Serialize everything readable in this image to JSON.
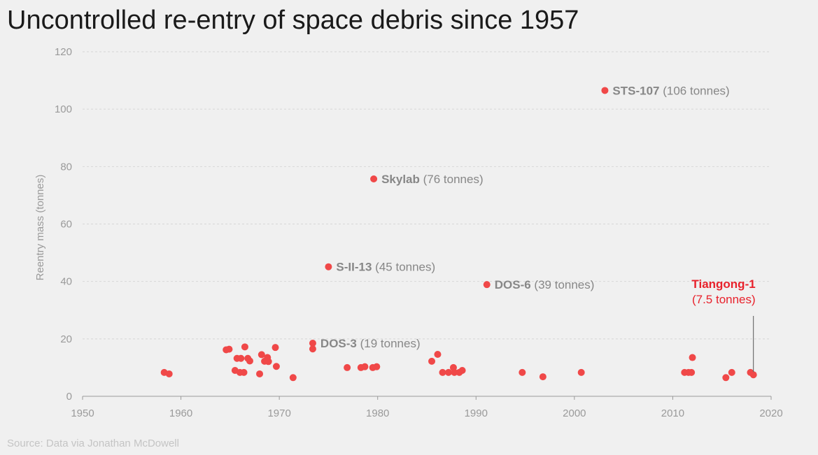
{
  "chart_data": {
    "type": "scatter",
    "title": "Uncontrolled re-entry of space debris since 1957",
    "ylabel": "Reentry mass (tonnes)",
    "xlabel": "",
    "xlim": [
      1950,
      2020
    ],
    "ylim": [
      0,
      120
    ],
    "x_ticks": [
      1950,
      1960,
      1970,
      1980,
      1990,
      2000,
      2010,
      2020
    ],
    "y_ticks": [
      0,
      20,
      40,
      60,
      80,
      100,
      120
    ],
    "grid": true,
    "point_color": "#f04848",
    "highlight_color": "#e8212b",
    "points": [
      {
        "x": 1958.3,
        "y": 8.3
      },
      {
        "x": 1958.8,
        "y": 7.8
      },
      {
        "x": 1964.6,
        "y": 16.2
      },
      {
        "x": 1964.9,
        "y": 16.4
      },
      {
        "x": 1965.5,
        "y": 9.0
      },
      {
        "x": 1965.7,
        "y": 13.2
      },
      {
        "x": 1966.0,
        "y": 8.3
      },
      {
        "x": 1966.1,
        "y": 13.2
      },
      {
        "x": 1966.4,
        "y": 8.3
      },
      {
        "x": 1966.5,
        "y": 17.2
      },
      {
        "x": 1966.8,
        "y": 13.2
      },
      {
        "x": 1967.0,
        "y": 12.3
      },
      {
        "x": 1968.0,
        "y": 7.8
      },
      {
        "x": 1968.2,
        "y": 14.5
      },
      {
        "x": 1968.5,
        "y": 12.2
      },
      {
        "x": 1968.8,
        "y": 13.5
      },
      {
        "x": 1968.9,
        "y": 12.1
      },
      {
        "x": 1969.6,
        "y": 17.0
      },
      {
        "x": 1969.7,
        "y": 10.4
      },
      {
        "x": 1971.4,
        "y": 6.5
      },
      {
        "x": 1973.4,
        "y": 18.5
      },
      {
        "x": 1973.4,
        "y": 16.5
      },
      {
        "x": 1976.9,
        "y": 10.0
      },
      {
        "x": 1978.3,
        "y": 10.0
      },
      {
        "x": 1978.7,
        "y": 10.3
      },
      {
        "x": 1979.5,
        "y": 10.0
      },
      {
        "x": 1979.9,
        "y": 10.3
      },
      {
        "x": 1985.5,
        "y": 12.2
      },
      {
        "x": 1986.1,
        "y": 14.6
      },
      {
        "x": 1986.6,
        "y": 8.3
      },
      {
        "x": 1987.2,
        "y": 8.3
      },
      {
        "x": 1987.7,
        "y": 10.0
      },
      {
        "x": 1987.8,
        "y": 8.3
      },
      {
        "x": 1988.3,
        "y": 8.3
      },
      {
        "x": 1988.6,
        "y": 9.0
      },
      {
        "x": 1994.7,
        "y": 8.3
      },
      {
        "x": 1996.8,
        "y": 6.8
      },
      {
        "x": 2000.7,
        "y": 8.3
      },
      {
        "x": 2011.2,
        "y": 8.3
      },
      {
        "x": 2011.6,
        "y": 8.3
      },
      {
        "x": 2011.9,
        "y": 8.3
      },
      {
        "x": 2012.0,
        "y": 13.5
      },
      {
        "x": 2015.4,
        "y": 6.5
      },
      {
        "x": 2016.0,
        "y": 8.3
      },
      {
        "x": 2017.9,
        "y": 8.3
      },
      {
        "x": 2018.2,
        "y": 7.5
      },
      {
        "x": 1979.6,
        "y": 75.7
      },
      {
        "x": 2003.1,
        "y": 106.5
      },
      {
        "x": 1975.0,
        "y": 45.1
      },
      {
        "x": 1991.1,
        "y": 38.9
      }
    ],
    "annotations": [
      {
        "name": "STS-107",
        "mass": "(106 tonnes)",
        "x": 2003.1,
        "y": 106.5
      },
      {
        "name": "Skylab",
        "mass": "(76 tonnes)",
        "x": 1979.6,
        "y": 75.7
      },
      {
        "name": "S-II-13",
        "mass": "(45 tonnes)",
        "x": 1975.0,
        "y": 45.1
      },
      {
        "name": "DOS-6",
        "mass": "(39 tonnes)",
        "x": 1991.1,
        "y": 38.9
      },
      {
        "name": "DOS-3",
        "mass": "(19 tonnes)",
        "x": 1973.4,
        "y": 18.5
      }
    ],
    "highlight": {
      "name": "Tiangong-1",
      "mass": "(7.5 tonnes)",
      "x": 2018.2,
      "y": 7.5
    }
  },
  "source": "Source: Data via Jonathan McDowell"
}
